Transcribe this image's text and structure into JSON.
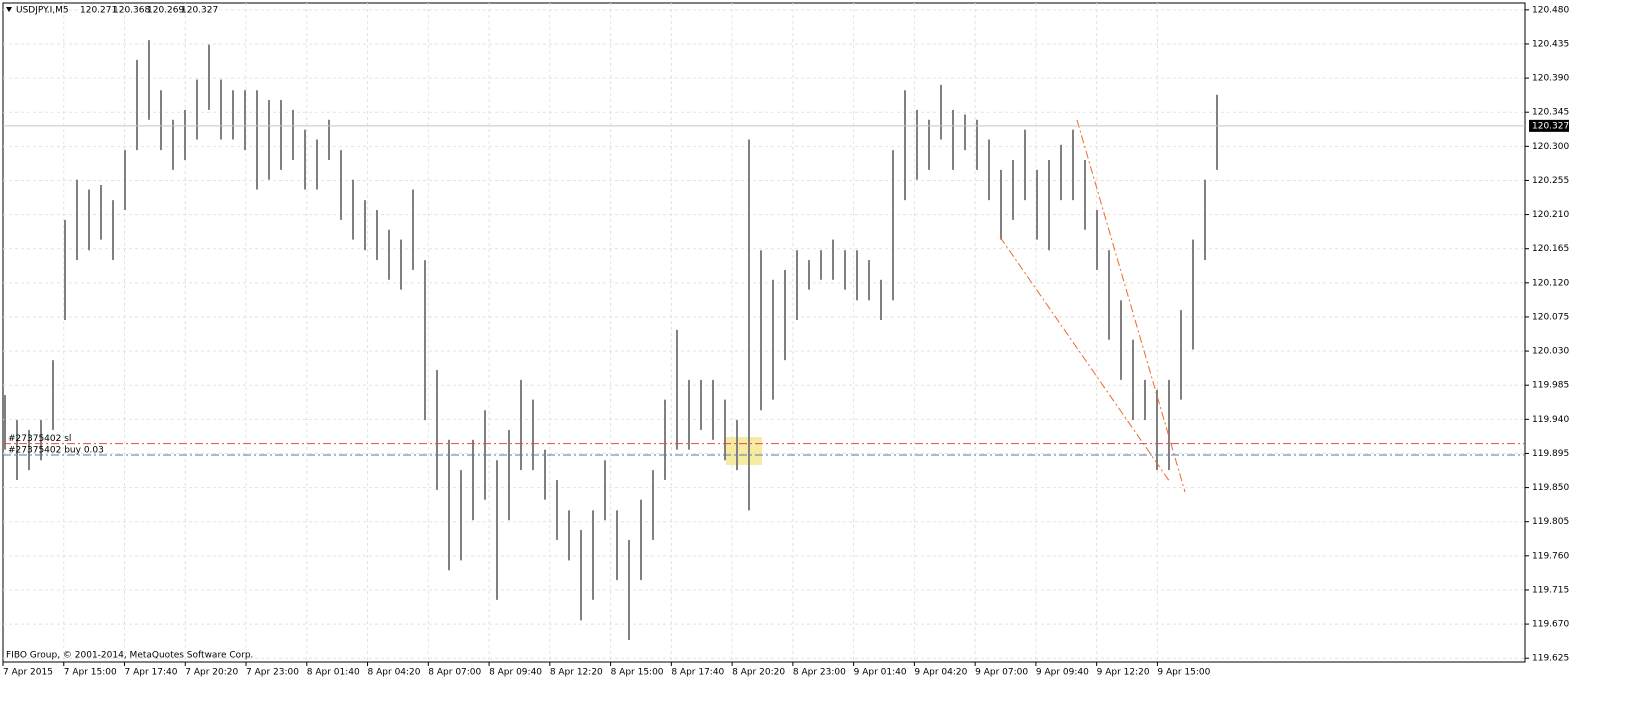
{
  "chart_data": {
    "type": "range",
    "symbol": "USDJPY.I,M5",
    "last_bar": {
      "open": 120.271,
      "high": 120.368,
      "low": 120.269,
      "close": 120.327
    },
    "copyright": "FIBO Group, © 2001-2014, MetaQuotes Software Corp.",
    "color": "#808080",
    "grid": true,
    "categories": [
      "7 Apr 2015",
      "7 Apr 15:00",
      "7 Apr 17:40",
      "7 Apr 20:20",
      "7 Apr 23:00",
      "8 Apr 01:40",
      "8 Apr 04:20",
      "8 Apr 07:00",
      "8 Apr 09:40",
      "8 Apr 12:20",
      "8 Apr 15:00",
      "8 Apr 17:40",
      "8 Apr 20:20",
      "8 Apr 23:00",
      "9 Apr 01:40",
      "9 Apr 04:20",
      "9 Apr 07:00",
      "9 Apr 09:40",
      "9 Apr 12:20",
      "9 Apr 15:00"
    ],
    "high": [
      119.972,
      119.939,
      119.926,
      119.939,
      120.018,
      120.203,
      120.256,
      120.243,
      120.249,
      120.229,
      120.295,
      120.414,
      120.44,
      120.374,
      120.335,
      120.348,
      120.388,
      120.434,
      120.388,
      120.374,
      120.374,
      120.374,
      120.361,
      120.361,
      120.348,
      120.322,
      120.309,
      120.335,
      120.295,
      120.256,
      120.229,
      120.216,
      120.19,
      120.177,
      120.243,
      120.15,
      120.005,
      119.913,
      119.873,
      119.913,
      119.952,
      119.886,
      119.926,
      119.992,
      119.966,
      119.9,
      119.86,
      119.82,
      119.794,
      119.82,
      119.886,
      119.82,
      119.781,
      119.834,
      119.873,
      119.966,
      120.058,
      119.992,
      119.992,
      119.992,
      119.966,
      119.939,
      120.309,
      120.163,
      120.124,
      120.137,
      120.163,
      120.15,
      120.163,
      120.177,
      120.163,
      120.163,
      120.15,
      120.124,
      120.295,
      120.374,
      120.348,
      120.335,
      120.381,
      120.348,
      120.342,
      120.335,
      120.309,
      120.269,
      120.282,
      120.322,
      120.269,
      120.282,
      120.302,
      120.322,
      120.282,
      120.216,
      120.163,
      120.097,
      120.045,
      119.992,
      119.979,
      119.992,
      120.084,
      120.177,
      120.256,
      120.368
    ],
    "low": [
      119.9,
      119.86,
      119.873,
      119.886,
      119.926,
      120.071,
      120.15,
      120.163,
      120.177,
      120.15,
      120.216,
      120.295,
      120.335,
      120.295,
      120.269,
      120.282,
      120.309,
      120.348,
      120.309,
      120.309,
      120.295,
      120.243,
      120.256,
      120.269,
      120.282,
      120.243,
      120.243,
      120.282,
      120.203,
      120.177,
      120.163,
      120.15,
      120.124,
      120.111,
      120.137,
      119.939,
      119.847,
      119.741,
      119.754,
      119.807,
      119.834,
      119.702,
      119.807,
      119.873,
      119.873,
      119.834,
      119.781,
      119.754,
      119.675,
      119.702,
      119.807,
      119.728,
      119.649,
      119.728,
      119.781,
      119.86,
      119.9,
      119.9,
      119.926,
      119.913,
      119.886,
      119.873,
      119.82,
      119.952,
      119.966,
      120.018,
      120.071,
      120.111,
      120.124,
      120.124,
      120.111,
      120.097,
      120.097,
      120.071,
      120.097,
      120.229,
      120.256,
      120.269,
      120.309,
      120.269,
      120.295,
      120.269,
      120.229,
      120.177,
      120.203,
      120.229,
      120.177,
      120.163,
      120.229,
      120.229,
      120.19,
      120.137,
      120.045,
      119.992,
      119.939,
      119.939,
      119.873,
      119.873,
      119.966,
      120.032,
      120.15,
      120.269
    ],
    "orders": [
      {
        "label": "#27375402 sl",
        "price": 119.908,
        "color": "#e8474f"
      },
      {
        "label": "#27375402 buy 0.03",
        "price": 119.893,
        "color": "#4a7fb5"
      }
    ],
    "ylim": [
      119.62,
      120.489
    ],
    "yticks": [
      {
        "value": 120.48,
        "label": "120.480"
      },
      120.435,
      {
        "value": 120.39,
        "label": "120.390"
      },
      120.345,
      {
        "value": 120.3,
        "label": "120.300"
      },
      120.255,
      {
        "value": 120.21,
        "label": "120.210"
      },
      120.165,
      {
        "value": 120.12,
        "label": "120.120"
      },
      120.075,
      {
        "value": 120.03,
        "label": "120.030"
      },
      119.985,
      {
        "value": 119.94,
        "label": "119.940"
      },
      119.895,
      {
        "value": 119.85,
        "label": "119.850"
      },
      119.805,
      {
        "value": 119.76,
        "label": "119.760"
      },
      119.715,
      {
        "value": 119.67,
        "label": "119.670"
      },
      119.625
    ]
  }
}
